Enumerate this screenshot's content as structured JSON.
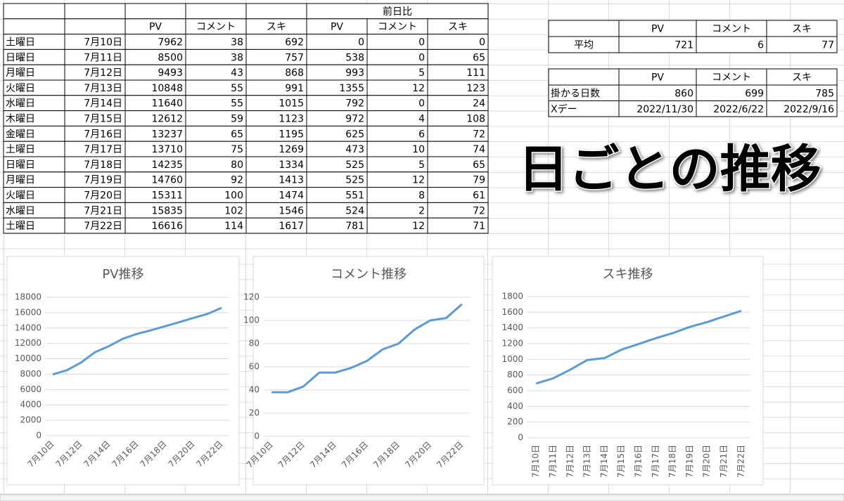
{
  "table": {
    "group_header": "前日比",
    "columns": [
      "PV",
      "コメント",
      "スキ",
      "PV",
      "コメント",
      "スキ"
    ],
    "rows": [
      [
        "土曜日",
        "7月10日",
        7962,
        38,
        692,
        0,
        0,
        0
      ],
      [
        "日曜日",
        "7月11日",
        8500,
        38,
        757,
        538,
        0,
        65
      ],
      [
        "月曜日",
        "7月12日",
        9493,
        43,
        868,
        993,
        5,
        111
      ],
      [
        "火曜日",
        "7月13日",
        10848,
        55,
        991,
        1355,
        12,
        123
      ],
      [
        "水曜日",
        "7月14日",
        11640,
        55,
        1015,
        792,
        0,
        24
      ],
      [
        "木曜日",
        "7月15日",
        12612,
        59,
        1123,
        972,
        4,
        108
      ],
      [
        "金曜日",
        "7月16日",
        13237,
        65,
        1195,
        625,
        6,
        72
      ],
      [
        "土曜日",
        "7月17日",
        13710,
        75,
        1269,
        473,
        10,
        74
      ],
      [
        "日曜日",
        "7月18日",
        14235,
        80,
        1334,
        525,
        5,
        65
      ],
      [
        "月曜日",
        "7月19日",
        14760,
        92,
        1413,
        525,
        12,
        79
      ],
      [
        "火曜日",
        "7月20日",
        15311,
        100,
        1474,
        551,
        8,
        61
      ],
      [
        "水曜日",
        "7月21日",
        15835,
        102,
        1546,
        524,
        2,
        72
      ],
      [
        "土曜日",
        "7月22日",
        16616,
        114,
        1617,
        781,
        12,
        71
      ]
    ]
  },
  "average": {
    "columns": [
      "PV",
      "コメント",
      "スキ"
    ],
    "row": [
      "平均",
      721,
      6,
      77
    ]
  },
  "forecast": {
    "columns": [
      "PV",
      "コメント",
      "スキ"
    ],
    "rows": [
      [
        "掛かる日数",
        860,
        699,
        785
      ],
      [
        "Xデー",
        "2022/11/30",
        "2022/6/22",
        "2022/9/16"
      ]
    ]
  },
  "heading": "日ごとの推移",
  "chart_data": [
    {
      "type": "line",
      "title": "PV推移",
      "categories": [
        "7月10日",
        null,
        "7月12日",
        null,
        "7月14日",
        null,
        "7月16日",
        null,
        "7月18日",
        null,
        "7月20日",
        null,
        "7月22日"
      ],
      "values": [
        7962,
        8500,
        9493,
        10848,
        11640,
        12612,
        13237,
        13710,
        14235,
        14760,
        15311,
        15835,
        16616
      ],
      "color": "#5b9bd5",
      "ylim": [
        0,
        18000
      ],
      "yticks": [
        0,
        2000,
        4000,
        6000,
        8000,
        10000,
        12000,
        14000,
        16000,
        18000
      ],
      "grid": true
    },
    {
      "type": "line",
      "title": "コメント推移",
      "categories": [
        "7月10日",
        null,
        "7月12日",
        null,
        "7月14日",
        null,
        "7月16日",
        null,
        "7月18日",
        null,
        "7月20日",
        null,
        "7月22日"
      ],
      "values": [
        38,
        38,
        43,
        55,
        55,
        59,
        65,
        75,
        80,
        92,
        100,
        102,
        114
      ],
      "color": "#5b9bd5",
      "ylim": [
        0,
        120
      ],
      "yticks": [
        0,
        20,
        40,
        60,
        80,
        100,
        120
      ],
      "grid": true
    },
    {
      "type": "line",
      "title": "スキ推移",
      "categories": [
        "7月10日",
        "7月11日",
        "7月12日",
        "7月13日",
        "7月14日",
        "7月15日",
        "7月16日",
        "7月17日",
        "7月18日",
        "7月19日",
        "7月20日",
        "7月21日",
        "7月22日"
      ],
      "values": [
        692,
        757,
        868,
        991,
        1015,
        1123,
        1195,
        1269,
        1334,
        1413,
        1474,
        1546,
        1617
      ],
      "color": "#5b9bd5",
      "ylim": [
        0,
        1800
      ],
      "yticks": [
        0,
        200,
        400,
        600,
        800,
        1000,
        1200,
        1400,
        1600,
        1800
      ],
      "grid": true
    }
  ]
}
